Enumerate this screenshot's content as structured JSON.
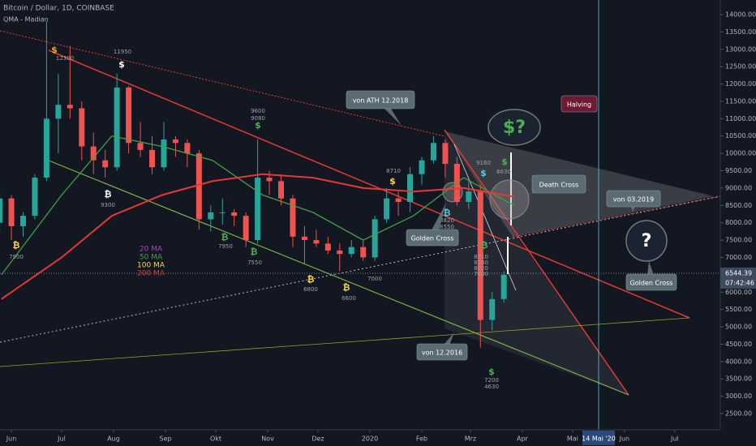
{
  "chart_data": {
    "type": "candlestick",
    "title": "Bitcoin / Dollar, 1D, COINBASE",
    "subtitle": "QMA - Madian",
    "up_color": "#26a69a",
    "down_color": "#ef5350",
    "candles": {
      "x": [
        -7,
        0,
        7,
        14,
        21,
        28,
        35,
        42,
        49,
        56,
        63,
        70,
        77,
        84,
        91,
        98,
        105,
        112,
        119,
        126,
        133,
        140,
        147,
        154,
        161,
        168,
        175,
        182,
        189,
        196,
        203,
        210,
        217,
        224,
        231,
        238,
        245,
        252,
        259,
        266,
        273,
        280,
        287,
        294
      ],
      "open": [
        8000,
        8700,
        7900,
        8200,
        9300,
        11000,
        11400,
        11300,
        10200,
        9800,
        9600,
        11900,
        10300,
        10100,
        9600,
        10400,
        10300,
        10000,
        8100,
        8300,
        8300,
        8200,
        7500,
        9300,
        9200,
        8700,
        7600,
        7500,
        7400,
        7200,
        7100,
        7300,
        7000,
        8100,
        8700,
        8600,
        9400,
        9800,
        10300,
        9700,
        8600,
        8900,
        5200,
        5800
      ],
      "high": [
        8900,
        8800,
        8300,
        9400,
        13800,
        12300,
        13100,
        11500,
        10600,
        10100,
        12300,
        11950,
        10900,
        10500,
        10900,
        10500,
        10400,
        10100,
        8500,
        8700,
        8400,
        8300,
        10400,
        9500,
        9400,
        8800,
        7900,
        7800,
        7600,
        7400,
        7500,
        7500,
        8200,
        9000,
        8900,
        9600,
        9900,
        10500,
        10400,
        9900,
        9200,
        9100,
        6000,
        6600
      ],
      "low": [
        7700,
        7500,
        7600,
        8100,
        9200,
        10000,
        11000,
        9800,
        9400,
        9300,
        9500,
        10000,
        9900,
        9400,
        9500,
        9900,
        9600,
        7800,
        7750,
        7950,
        7900,
        7300,
        7400,
        8800,
        8500,
        7300,
        6800,
        7300,
        7100,
        6600,
        7000,
        6900,
        6900,
        8000,
        8200,
        8300,
        9100,
        9700,
        9300,
        8500,
        8400,
        4400,
        4900,
        5700
      ],
      "close": [
        8700,
        7900,
        8200,
        9300,
        11000,
        11400,
        11300,
        10200,
        9800,
        9600,
        11900,
        10300,
        10100,
        9600,
        10400,
        10300,
        10000,
        8100,
        8300,
        8300,
        8200,
        7500,
        9300,
        9200,
        8700,
        7600,
        7500,
        7400,
        7200,
        7100,
        7300,
        7000,
        8100,
        8700,
        8600,
        9400,
        9800,
        10300,
        9700,
        8600,
        8900,
        5200,
        5800,
        6500
      ]
    },
    "series": [
      {
        "name": "50 MA",
        "color": "#43a047",
        "x": [
          -6,
          30,
          60,
          90,
          120,
          150,
          180,
          210,
          240,
          270,
          300
        ],
        "values": [
          6500,
          8800,
          10500,
          10200,
          9800,
          8800,
          8300,
          7500,
          8200,
          9300,
          8500
        ]
      },
      {
        "name": "200 MA",
        "color": "#e53935",
        "x": [
          -6,
          30,
          60,
          90,
          120,
          150,
          180,
          210,
          240,
          270,
          300
        ],
        "values": [
          5800,
          7000,
          8200,
          8800,
          9200,
          9400,
          9300,
          9000,
          8900,
          9000,
          8750
        ]
      }
    ],
    "legend_extra": [
      {
        "name": "20 MA",
        "color": "#ab47bc"
      },
      {
        "name": "100 MA",
        "color": "#fdd835"
      }
    ],
    "xlim": [
      -6.8,
      423.2
    ],
    "xticks": [
      {
        "value": 0,
        "label": "Jun"
      },
      {
        "value": 30,
        "label": "Jul"
      },
      {
        "value": 61,
        "label": "Aug"
      },
      {
        "value": 92,
        "label": "Sep"
      },
      {
        "value": 122,
        "label": "Okt"
      },
      {
        "value": 153,
        "label": "Nov"
      },
      {
        "value": 183,
        "label": "Dez"
      },
      {
        "value": 214,
        "label": "2020"
      },
      {
        "value": 245,
        "label": "Feb"
      },
      {
        "value": 274,
        "label": "Mrz"
      },
      {
        "value": 305,
        "label": "Apr"
      },
      {
        "value": 335,
        "label": "Mai"
      },
      {
        "value": 366,
        "label": "Jun"
      },
      {
        "value": 396,
        "label": "Jul"
      }
    ],
    "ylim": [
      2079,
      14421
    ],
    "yticks": [
      {
        "value": 14000,
        "label": "14000.00"
      },
      {
        "value": 13500,
        "label": "13500.00"
      },
      {
        "value": 13000,
        "label": "13000.00"
      },
      {
        "value": 12500,
        "label": "12500.00"
      },
      {
        "value": 12000,
        "label": "12000.00"
      },
      {
        "value": 11500,
        "label": "11500.00"
      },
      {
        "value": 11000,
        "label": "11000.00"
      },
      {
        "value": 10500,
        "label": "10500.00"
      },
      {
        "value": 10000,
        "label": "10000.00"
      },
      {
        "value": 9500,
        "label": "9500.00"
      },
      {
        "value": 9000,
        "label": "9000.00"
      },
      {
        "value": 8500,
        "label": "8500.00"
      },
      {
        "value": 8000,
        "label": "8000.00"
      },
      {
        "value": 7500,
        "label": "7500.00"
      },
      {
        "value": 7000,
        "label": "7000.00"
      },
      {
        "value": 6500,
        "label": "6500.00"
      },
      {
        "value": 6000,
        "label": "6000.00"
      },
      {
        "value": 5500,
        "label": "5500.00"
      },
      {
        "value": 5000,
        "label": "5000.00"
      },
      {
        "value": 4500,
        "label": "4500.00"
      },
      {
        "value": 4000,
        "label": "4000.00"
      },
      {
        "value": 3500,
        "label": "3500.00"
      },
      {
        "value": 3000,
        "label": "3000.00"
      },
      {
        "value": 2500,
        "label": "2500.00"
      }
    ],
    "last_price": 6544.39,
    "countdown": "07:42:46",
    "cursor_date": "14 Mai '20",
    "pivot_labels": [
      12300,
      11950,
      9300,
      7900,
      9600,
      9080,
      7950,
      7550,
      6800,
      6600,
      7000,
      8710,
      9160,
      6630,
      8820,
      8550,
      8440,
      8710,
      8260,
      8020,
      7600,
      7200,
      4630
    ],
    "signal_icons": [
      {
        "symbol": "$",
        "color": "#f5a623"
      },
      {
        "symbol": "$",
        "color": "#ffffff"
      },
      {
        "symbol": "₿",
        "color": "#ffffff"
      },
      {
        "symbol": "₿",
        "color": "#fdd835"
      },
      {
        "symbol": "$",
        "color": "#4caf50"
      },
      {
        "symbol": "₿",
        "color": "#4caf50"
      },
      {
        "symbol": "₿",
        "color": "#4caf50"
      },
      {
        "symbol": "₿",
        "color": "#fdd835"
      },
      {
        "symbol": "₿",
        "color": "#fdd835"
      },
      {
        "symbol": "$",
        "color": "#fdd835"
      },
      {
        "symbol": "₿",
        "color": "#4dd0e1"
      },
      {
        "symbol": "$",
        "color": "#4dd0e1"
      },
      {
        "symbol": "$",
        "color": "#4caf50"
      },
      {
        "symbol": "₿",
        "color": "#4caf50"
      },
      {
        "symbol": "$",
        "color": "#4caf50"
      }
    ],
    "callouts": [
      "von ATH 12.2018",
      "$?",
      "Halving",
      "Death Cross",
      "von 03.2019",
      "Golden Cross",
      "?",
      "Golden Cross",
      "von 12.2016"
    ]
  }
}
